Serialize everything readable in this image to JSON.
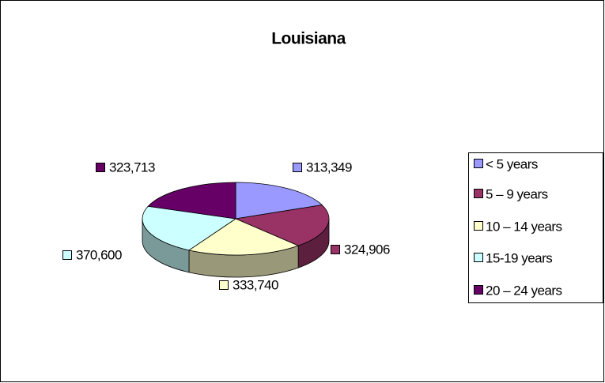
{
  "chart_data": {
    "type": "pie",
    "title": "Louisiana",
    "categories": [
      "< 5 years",
      "5 – 9 years",
      "10 – 14 years",
      "15-19 years",
      "20 – 24 years"
    ],
    "values": [
      313349,
      324906,
      333740,
      370600,
      323713
    ],
    "value_labels": [
      "313,349",
      "324,906",
      "333,740",
      "370,600",
      "323,713"
    ],
    "colors": [
      "#9999ff",
      "#993366",
      "#ffffcc",
      "#ccffff",
      "#660066"
    ],
    "legend": "right"
  }
}
